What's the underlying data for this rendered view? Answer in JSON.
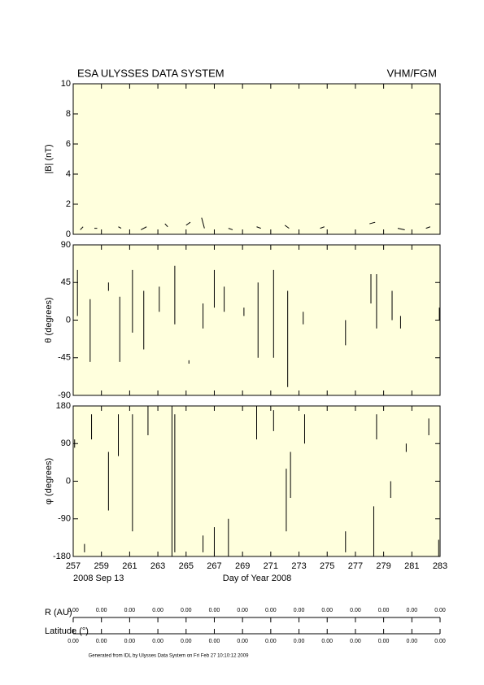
{
  "header": {
    "title": "ESA ULYSSES DATA SYSTEM",
    "instrument": "VHM/FGM"
  },
  "chart_data": [
    {
      "type": "line",
      "ylabel": "|B| (nT)",
      "xlim": [
        257,
        283
      ],
      "xticks": [
        257,
        259,
        261,
        263,
        265,
        267,
        269,
        271,
        273,
        275,
        277,
        279,
        281,
        283
      ],
      "ylim": [
        0,
        10
      ],
      "yticks": [
        0,
        2,
        4,
        6,
        8,
        10
      ],
      "x": [
        257.5,
        257.7,
        null,
        258.5,
        258.7,
        null,
        260.2,
        260.4,
        null,
        261.8,
        262.2,
        null,
        263.5,
        263.7,
        null,
        265.0,
        265.3,
        null,
        266.1,
        266.3,
        null,
        268.0,
        268.3,
        null,
        270.0,
        270.3,
        null,
        272.0,
        272.3,
        null,
        274.5,
        274.8,
        null,
        278.0,
        278.4,
        null,
        280.0,
        280.5,
        null,
        282.0,
        282.3
      ],
      "series": [
        {
          "name": "|B|",
          "color": "#000000",
          "values": [
            0.3,
            0.5,
            null,
            0.4,
            0.4,
            null,
            0.5,
            0.4,
            null,
            0.3,
            0.5,
            null,
            0.7,
            0.5,
            null,
            0.6,
            0.8,
            null,
            1.1,
            0.4,
            null,
            0.4,
            0.3,
            null,
            0.5,
            0.4,
            null,
            0.6,
            0.4,
            null,
            0.4,
            0.5,
            null,
            0.7,
            0.8,
            null,
            0.4,
            0.3,
            null,
            0.4,
            0.5
          ]
        }
      ]
    },
    {
      "type": "line",
      "ylabel": "θ (degrees)",
      "xlim": [
        257,
        283
      ],
      "xticks": [
        257,
        259,
        261,
        263,
        265,
        267,
        269,
        271,
        273,
        275,
        277,
        279,
        281,
        283
      ],
      "ylim": [
        -90,
        90
      ],
      "yticks": [
        -90,
        -45,
        0,
        45,
        90
      ],
      "x": [
        257.3,
        257.3,
        null,
        258.2,
        258.2,
        null,
        259.5,
        259.5,
        null,
        260.3,
        260.3,
        null,
        261.2,
        261.2,
        null,
        262.0,
        262.0,
        null,
        263.1,
        263.1,
        null,
        264.2,
        264.2,
        null,
        265.2,
        265.2,
        null,
        266.2,
        266.2,
        null,
        267.0,
        267.0,
        null,
        267.7,
        267.7,
        null,
        269.1,
        269.1,
        null,
        270.1,
        270.1,
        null,
        271.2,
        271.2,
        null,
        272.2,
        272.2,
        null,
        273.3,
        273.3,
        null,
        276.3,
        276.3,
        null,
        278.1,
        278.1,
        null,
        278.5,
        278.5,
        null,
        279.6,
        279.6,
        null,
        280.2,
        280.2,
        null,
        282.95,
        282.95
      ],
      "series": [
        {
          "name": "θ",
          "color": "#000000",
          "values": [
            60,
            5,
            null,
            25,
            -50,
            null,
            45,
            35,
            null,
            28,
            -50,
            null,
            60,
            -15,
            null,
            35,
            -35,
            null,
            40,
            10,
            null,
            65,
            -5,
            null,
            -48,
            -52,
            null,
            20,
            -10,
            null,
            60,
            15,
            null,
            40,
            10,
            null,
            15,
            5,
            null,
            45,
            -45,
            null,
            60,
            -45,
            null,
            35,
            -80,
            null,
            10,
            -5,
            null,
            0,
            -30,
            null,
            55,
            20,
            null,
            55,
            -10,
            null,
            35,
            0,
            null,
            5,
            -10,
            null,
            15,
            0
          ]
        }
      ]
    },
    {
      "type": "line",
      "ylabel": "φ (degrees)",
      "xlabel": "Day of Year 2008",
      "date_label": "2008 Sep 13",
      "xlim": [
        257,
        283
      ],
      "xticks": [
        257,
        259,
        261,
        263,
        265,
        267,
        269,
        271,
        273,
        275,
        277,
        279,
        281,
        283
      ],
      "ylim": [
        -180,
        180
      ],
      "yticks": [
        -180,
        -90,
        0,
        90,
        180
      ],
      "x": [
        257.1,
        257.1,
        null,
        257.8,
        257.8,
        null,
        258.3,
        258.3,
        null,
        259.5,
        259.5,
        null,
        260.2,
        260.2,
        null,
        261.2,
        261.2,
        null,
        262.3,
        262.3,
        null,
        264.0,
        264.0,
        null,
        264.2,
        264.2,
        null,
        266.2,
        266.2,
        null,
        267.0,
        267.0,
        null,
        268.0,
        268.0,
        null,
        270.0,
        270.0,
        null,
        271.2,
        271.2,
        null,
        272.1,
        272.1,
        null,
        272.4,
        272.4,
        null,
        273.4,
        273.4,
        null,
        276.3,
        276.3,
        null,
        278.3,
        278.3,
        null,
        278.5,
        278.5,
        null,
        279.5,
        279.5,
        null,
        280.6,
        280.6,
        null,
        282.2,
        282.2,
        null,
        282.9,
        282.9
      ],
      "series": [
        {
          "name": "φ",
          "color": "#000000",
          "values": [
            100,
            80,
            null,
            -150,
            -170,
            null,
            160,
            100,
            null,
            70,
            -70,
            null,
            160,
            60,
            null,
            160,
            -120,
            null,
            180,
            110,
            null,
            180,
            -180,
            null,
            160,
            -170,
            null,
            -130,
            -170,
            null,
            -110,
            -180,
            null,
            -90,
            -180,
            null,
            180,
            100,
            null,
            170,
            120,
            null,
            30,
            -120,
            null,
            70,
            -40,
            null,
            160,
            90,
            null,
            -120,
            -170,
            null,
            -60,
            -180,
            null,
            160,
            100,
            null,
            0,
            -40,
            null,
            90,
            70,
            null,
            150,
            110,
            null,
            -140,
            -180
          ]
        }
      ]
    }
  ],
  "ephemeris": {
    "r_label": "R (AU)",
    "r_values": [
      0,
      0,
      0,
      0,
      0,
      0,
      0,
      0,
      0,
      0,
      0,
      0,
      0,
      0
    ],
    "r_value_labels": [
      "0.00",
      "0.00",
      "0.00",
      "0.00",
      "0.00",
      "0.00",
      "0.00",
      "0.00",
      "0.00",
      "0.00",
      "0.00",
      "0.00",
      "0.00",
      "0.00"
    ],
    "lat_label": "Latitude (°)",
    "lat_values": [
      0,
      0,
      0,
      0,
      0,
      0,
      0,
      0,
      0,
      0,
      0,
      0,
      0,
      0
    ],
    "lat_value_labels": [
      "0.00",
      "0.00",
      "0.00",
      "0.00",
      "0.00",
      "0.00",
      "0.00",
      "0.00",
      "0.00",
      "0.00",
      "0.00",
      "0.00",
      "0.00",
      "0.00"
    ]
  },
  "footer": "Generated from IDL by Ulysses Data System on Fri Feb 27 10:10:12 2009"
}
